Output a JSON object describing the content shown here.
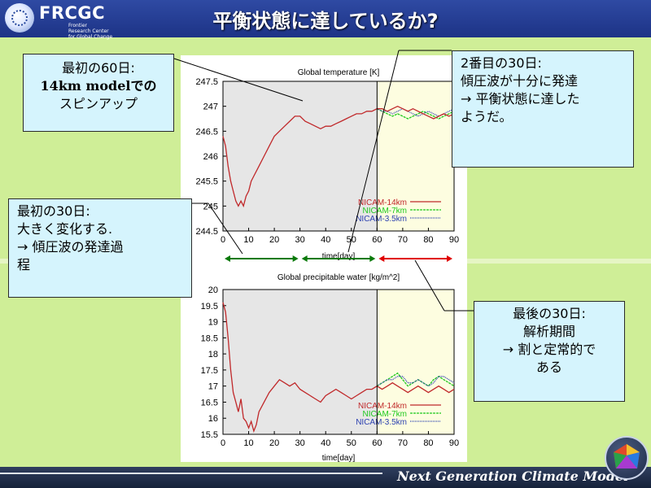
{
  "header": {
    "logo_text": "FRCGC",
    "logo_sub": [
      "Frontier",
      "Research Center",
      "for Global Change"
    ],
    "title": "平衡状態に達しているか?"
  },
  "callouts": {
    "c1": [
      "最初の60日:",
      "14km modelでの",
      "スピンアップ"
    ],
    "c2": [
      "2番目の30日:",
      "傾圧波が十分に発達",
      "→ 平衡状態に達した",
      "ようだ。"
    ],
    "c3": [
      "最初の30日:",
      "大きく変化する.",
      "→ 傾圧波の発達過",
      "程"
    ],
    "c4": [
      "最後の30日:",
      "解析期間",
      "→ 割と定常的で",
      "ある"
    ]
  },
  "footer": {
    "text": "Next Generation Climate Model"
  },
  "colors": {
    "red": "#c0282a",
    "green": "#1ec81e",
    "blue": "#2a3fb0",
    "arrow_green": "#0a7a0a",
    "arrow_red": "#e00000",
    "shade_gray": "#e6e6e6",
    "shade_yellow": "#fdfde0"
  },
  "chart_data": [
    {
      "type": "line",
      "title": "Global temperature [K]",
      "xlabel": "time[day]",
      "ylabel": "",
      "xlim": [
        0,
        90
      ],
      "ylim": [
        244.5,
        247.5
      ],
      "xticks": [
        "0",
        "10",
        "20",
        "30",
        "40",
        "50",
        "60",
        "70",
        "80",
        "90"
      ],
      "yticks": [
        "244.5",
        "245",
        "245.5",
        "246",
        "246.5",
        "247",
        "247.5"
      ],
      "legend": "bottom-right",
      "series": [
        {
          "name": "NICAM-14km",
          "color": "#c0282a",
          "x": [
            0,
            1,
            2,
            3,
            4,
            5,
            6,
            7,
            8,
            9,
            10,
            11,
            12,
            14,
            16,
            18,
            20,
            22,
            24,
            26,
            28,
            30,
            32,
            34,
            36,
            38,
            40,
            42,
            44,
            46,
            48,
            50,
            52,
            54,
            56,
            58,
            60,
            62,
            64,
            66,
            68,
            70,
            72,
            74,
            76,
            78,
            80,
            82,
            84,
            86,
            88,
            90
          ],
          "y": [
            246.4,
            246.2,
            245.8,
            245.5,
            245.3,
            245.1,
            245.0,
            245.1,
            245.0,
            245.2,
            245.3,
            245.5,
            245.6,
            245.8,
            246.0,
            246.2,
            246.4,
            246.5,
            246.6,
            246.7,
            246.8,
            246.8,
            246.7,
            246.65,
            246.6,
            246.55,
            246.6,
            246.6,
            246.65,
            246.7,
            246.75,
            246.8,
            246.85,
            246.85,
            246.9,
            246.9,
            246.95,
            246.95,
            246.9,
            246.95,
            247.0,
            246.95,
            246.9,
            246.95,
            246.9,
            246.85,
            246.8,
            246.75,
            246.8,
            246.85,
            246.8,
            246.85
          ]
        },
        {
          "name": "NICAM-7km",
          "color": "#1ec81e",
          "x": [
            60,
            62,
            64,
            66,
            68,
            70,
            72,
            74,
            76,
            78,
            80,
            82,
            84,
            86,
            88,
            90
          ],
          "y": [
            246.95,
            246.9,
            246.85,
            246.8,
            246.85,
            246.8,
            246.75,
            246.8,
            246.85,
            246.9,
            246.85,
            246.8,
            246.75,
            246.8,
            246.85,
            246.9
          ]
        },
        {
          "name": "NICAM-3.5km",
          "color": "#2a3fb0",
          "x": [
            60,
            62,
            64,
            66,
            68,
            70,
            72,
            74,
            76,
            78,
            80,
            82,
            84,
            86,
            88,
            90
          ],
          "y": [
            246.95,
            246.9,
            246.9,
            246.85,
            246.9,
            246.95,
            246.9,
            246.85,
            246.8,
            246.85,
            246.9,
            246.85,
            246.8,
            246.85,
            246.9,
            246.95
          ]
        }
      ]
    },
    {
      "type": "line",
      "title": "Global precipitable water [kg/m^2]",
      "xlabel": "time[day]",
      "ylabel": "",
      "xlim": [
        0,
        90
      ],
      "ylim": [
        15.5,
        20
      ],
      "xticks": [
        "0",
        "10",
        "20",
        "30",
        "40",
        "50",
        "60",
        "70",
        "80",
        "90"
      ],
      "yticks": [
        "15.5",
        "16",
        "16.5",
        "17",
        "17.5",
        "18",
        "18.5",
        "19",
        "19.5",
        "20"
      ],
      "legend": "bottom-right",
      "series": [
        {
          "name": "NICAM-14km",
          "color": "#c0282a",
          "x": [
            0,
            1,
            2,
            3,
            4,
            5,
            6,
            7,
            8,
            9,
            10,
            11,
            12,
            13,
            14,
            16,
            18,
            20,
            22,
            24,
            26,
            28,
            30,
            32,
            34,
            36,
            38,
            40,
            42,
            44,
            46,
            48,
            50,
            52,
            54,
            56,
            58,
            60,
            62,
            64,
            66,
            68,
            70,
            72,
            74,
            76,
            78,
            80,
            82,
            84,
            86,
            88,
            90
          ],
          "y": [
            19.6,
            19.3,
            18.5,
            17.5,
            16.8,
            16.5,
            16.2,
            16.6,
            16.0,
            15.9,
            15.7,
            15.9,
            15.6,
            15.8,
            16.2,
            16.5,
            16.8,
            17.0,
            17.2,
            17.1,
            17.0,
            17.1,
            16.9,
            16.8,
            16.7,
            16.6,
            16.5,
            16.7,
            16.8,
            16.9,
            16.8,
            16.7,
            16.6,
            16.7,
            16.8,
            16.9,
            16.9,
            17.0,
            16.9,
            17.0,
            17.1,
            17.0,
            16.9,
            16.8,
            16.9,
            17.0,
            16.9,
            16.8,
            16.9,
            17.0,
            16.9,
            16.8,
            16.9
          ]
        },
        {
          "name": "NICAM-7km",
          "color": "#1ec81e",
          "x": [
            60,
            62,
            64,
            66,
            68,
            70,
            72,
            74,
            76,
            78,
            80,
            82,
            84,
            86,
            88,
            90
          ],
          "y": [
            17.0,
            17.1,
            17.2,
            17.3,
            17.4,
            17.2,
            17.0,
            17.1,
            17.2,
            17.1,
            17.0,
            17.2,
            17.3,
            17.2,
            17.1,
            17.0
          ]
        },
        {
          "name": "NICAM-3.5km",
          "color": "#2a3fb0",
          "x": [
            60,
            62,
            64,
            66,
            68,
            70,
            72,
            74,
            76,
            78,
            80,
            82,
            84,
            86,
            88,
            90
          ],
          "y": [
            17.0,
            17.1,
            17.2,
            17.2,
            17.3,
            17.3,
            17.1,
            17.1,
            17.2,
            17.1,
            17.0,
            17.1,
            17.3,
            17.3,
            17.2,
            17.1
          ]
        }
      ]
    }
  ]
}
